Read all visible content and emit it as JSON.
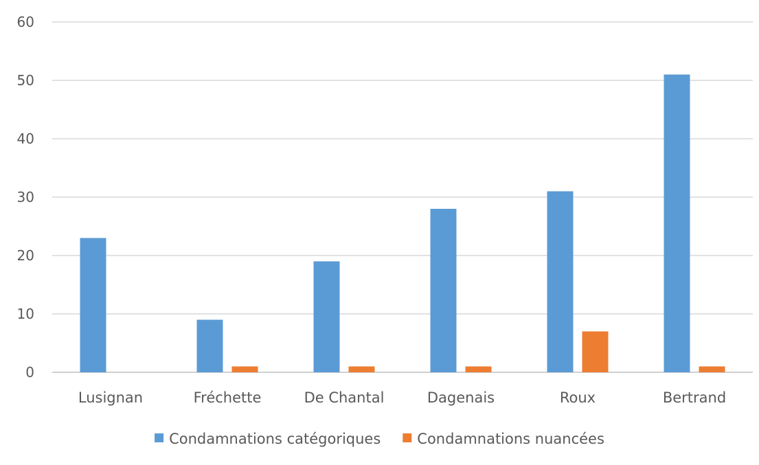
{
  "chart_data": {
    "type": "bar",
    "title": "",
    "xlabel": "",
    "ylabel": "",
    "categories": [
      "Lusignan",
      "Fréchette",
      "De Chantal",
      "Dagenais",
      "Roux",
      "Bertrand"
    ],
    "series": [
      {
        "name": "Condamnations catégoriques",
        "color": "#5b9bd5",
        "values": [
          23,
          9,
          19,
          28,
          31,
          51
        ]
      },
      {
        "name": "Condamnations nuancées",
        "color": "#ed7d31",
        "values": [
          0,
          1,
          1,
          1,
          7,
          1
        ]
      }
    ],
    "ylim": [
      0,
      60
    ],
    "yticks": [
      "0",
      "10",
      "20",
      "30",
      "40",
      "50",
      "60"
    ],
    "grid": true,
    "legend_position": "bottom"
  }
}
